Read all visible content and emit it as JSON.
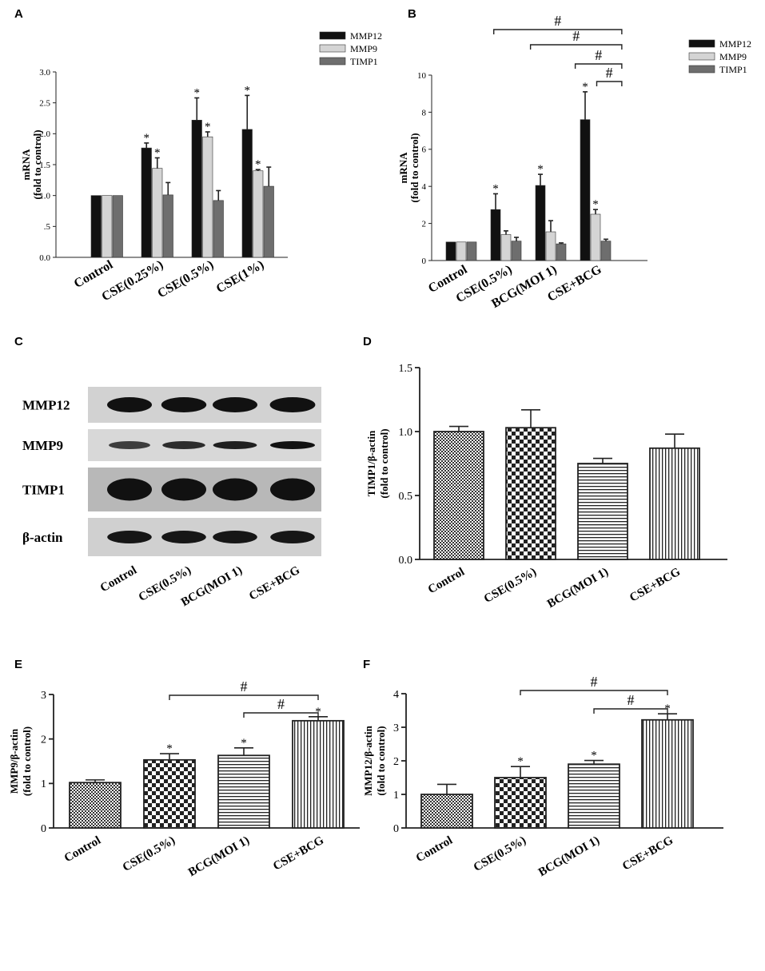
{
  "chart_data": [
    {
      "panel": "A",
      "type": "bar",
      "ylabel_line1": "mRNA",
      "ylabel_line2": "(fold to control)",
      "ylim": [
        0,
        3.0
      ],
      "yticks": [
        0.0,
        0.5,
        1.0,
        1.5,
        2.0,
        2.5,
        3.0
      ],
      "ytick_labels": [
        "0.0",
        ".5",
        "1.0",
        "1.5",
        "2.0",
        "2.5",
        "3.0"
      ],
      "categories": [
        "Control",
        "CSE(0.25%)",
        "CSE(0.5%)",
        "CSE(1%)"
      ],
      "series": [
        {
          "name": "MMP12",
          "color": "#111111",
          "values": [
            1.0,
            1.77,
            2.22,
            2.07
          ],
          "errors": [
            0,
            0.08,
            0.36,
            0.55
          ]
        },
        {
          "name": "MMP9",
          "color": "#d4d4d4",
          "values": [
            1.0,
            1.44,
            1.95,
            1.4
          ],
          "errors": [
            0,
            0.17,
            0.08,
            0.02
          ]
        },
        {
          "name": "TIMP1",
          "color": "#6e6e6e",
          "values": [
            1.0,
            1.01,
            0.92,
            1.15
          ],
          "errors": [
            0,
            0.2,
            0.16,
            0.31
          ]
        }
      ],
      "annotations": {
        "star_markers": "*"
      }
    },
    {
      "panel": "B",
      "type": "bar",
      "ylabel_line1": "mRNA",
      "ylabel_line2": "(fold to control)",
      "ylim": [
        0,
        10
      ],
      "yticks": [
        0,
        2,
        4,
        6,
        8,
        10
      ],
      "ytick_labels": [
        "0",
        "2",
        "4",
        "6",
        "8",
        "10"
      ],
      "categories": [
        "Control",
        "CSE(0.5%)",
        "BCG(MOI 1)",
        "CSE+BCG"
      ],
      "series": [
        {
          "name": "MMP12",
          "color": "#111111",
          "values": [
            1.0,
            2.75,
            4.05,
            7.6
          ],
          "errors": [
            0,
            0.85,
            0.6,
            1.5
          ]
        },
        {
          "name": "MMP9",
          "color": "#d4d4d4",
          "values": [
            1.0,
            1.4,
            1.55,
            2.5
          ],
          "errors": [
            0,
            0.2,
            0.6,
            0.25
          ]
        },
        {
          "name": "TIMP1",
          "color": "#6e6e6e",
          "values": [
            1.0,
            1.05,
            0.9,
            1.05
          ],
          "errors": [
            0,
            0.2,
            0.05,
            0.1
          ]
        }
      ],
      "annotations": {
        "star_markers": "*",
        "hash_marker": "#"
      }
    },
    {
      "panel": "D",
      "type": "bar",
      "ylabel_line1": "TIMP1/β-actin",
      "ylabel_line2": "(fold to control)",
      "ylim": [
        0,
        1.5
      ],
      "yticks": [
        0.0,
        0.5,
        1.0,
        1.5
      ],
      "ytick_labels": [
        "0.0",
        "0.5",
        "1.0",
        "1.5"
      ],
      "categories": [
        "Control",
        "CSE(0.5%)",
        "BCG(MOI 1)",
        "CSE+BCG"
      ],
      "values": [
        1.0,
        1.03,
        0.75,
        0.87
      ],
      "errors": [
        0.04,
        0.14,
        0.04,
        0.11
      ]
    },
    {
      "panel": "E",
      "type": "bar",
      "ylabel_line1": "MMP9/β-actin",
      "ylabel_line2": "(fold to control)",
      "ylim": [
        0,
        3
      ],
      "yticks": [
        0,
        1,
        2,
        3
      ],
      "ytick_labels": [
        "0",
        "1",
        "2",
        "3"
      ],
      "categories": [
        "Control",
        "CSE(0.5%)",
        "BCG(MOI 1)",
        "CSE+BCG"
      ],
      "values": [
        1.02,
        1.53,
        1.63,
        2.41
      ],
      "errors": [
        0.06,
        0.14,
        0.17,
        0.09
      ],
      "annotations": {
        "star_markers": "*",
        "hash_marker": "#"
      }
    },
    {
      "panel": "F",
      "type": "bar",
      "ylabel_line1": "MMP12/β-actin",
      "ylabel_line2": "(fold to control)",
      "ylim": [
        0,
        4
      ],
      "yticks": [
        0,
        1,
        2,
        3,
        4
      ],
      "ytick_labels": [
        "0",
        "1",
        "2",
        "3",
        "4"
      ],
      "categories": [
        "Control",
        "CSE(0.5%)",
        "BCG(MOI 1)",
        "CSE+BCG"
      ],
      "values": [
        1.0,
        1.5,
        1.9,
        3.22
      ],
      "errors": [
        0.3,
        0.33,
        0.11,
        0.18
      ],
      "annotations": {
        "star_markers": "*",
        "hash_marker": "#"
      }
    }
  ],
  "panel_letters": [
    "A",
    "B",
    "C",
    "D",
    "E",
    "F"
  ],
  "blot": {
    "panel": "C",
    "rows": [
      "MMP12",
      "MMP9",
      "TIMP1",
      "β-actin"
    ],
    "lanes": [
      "Control",
      "CSE(0.5%)",
      "BCG(MOI 1)",
      "CSE+BCG"
    ]
  },
  "colors": {
    "bar_fill": "#ffffff",
    "ink": "#222222"
  }
}
